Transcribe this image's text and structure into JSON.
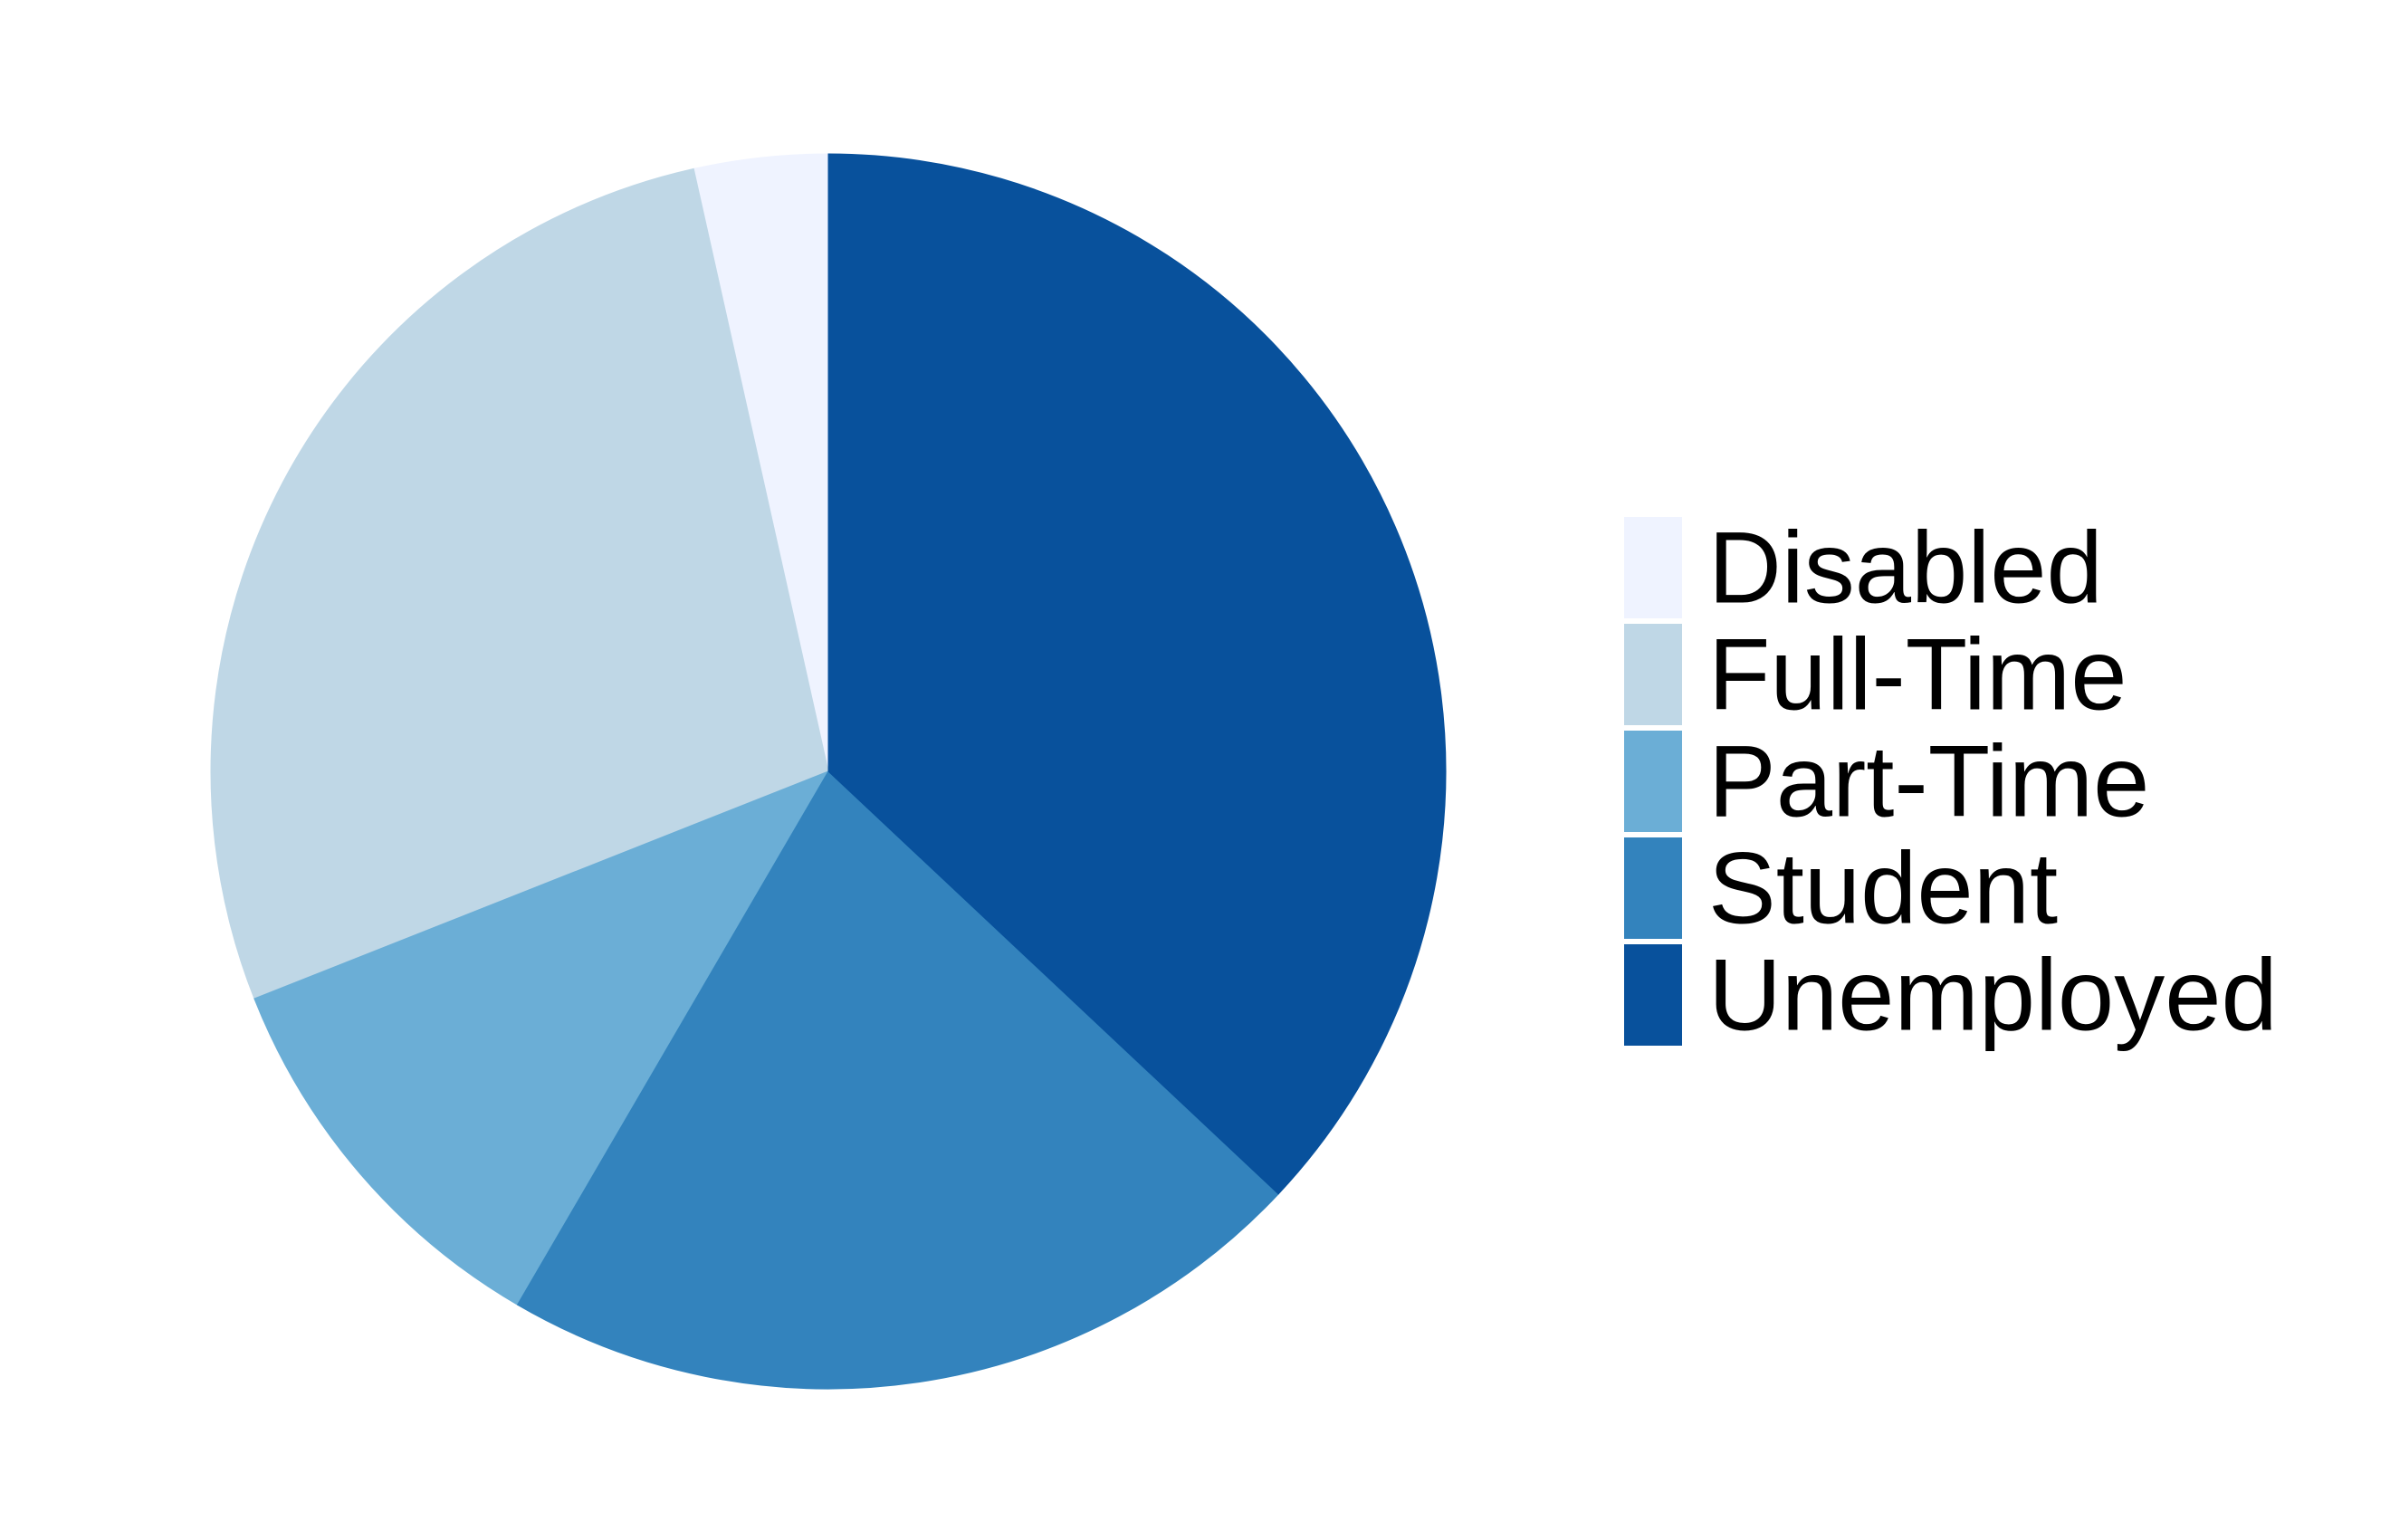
{
  "chart_data": {
    "type": "pie",
    "title": "",
    "categories": [
      "Disabled",
      "Full-Time",
      "Part-Time",
      "Student",
      "Unemployed"
    ],
    "values": [
      3.5,
      27.5,
      10.6,
      21.4,
      37.0
    ],
    "colors": [
      "#EFF3FF",
      "#BFD7E6",
      "#6BAED6",
      "#3383BD",
      "#08519C"
    ],
    "legend_position": "right",
    "start": "12 o'clock",
    "direction": "counterclockwise"
  }
}
